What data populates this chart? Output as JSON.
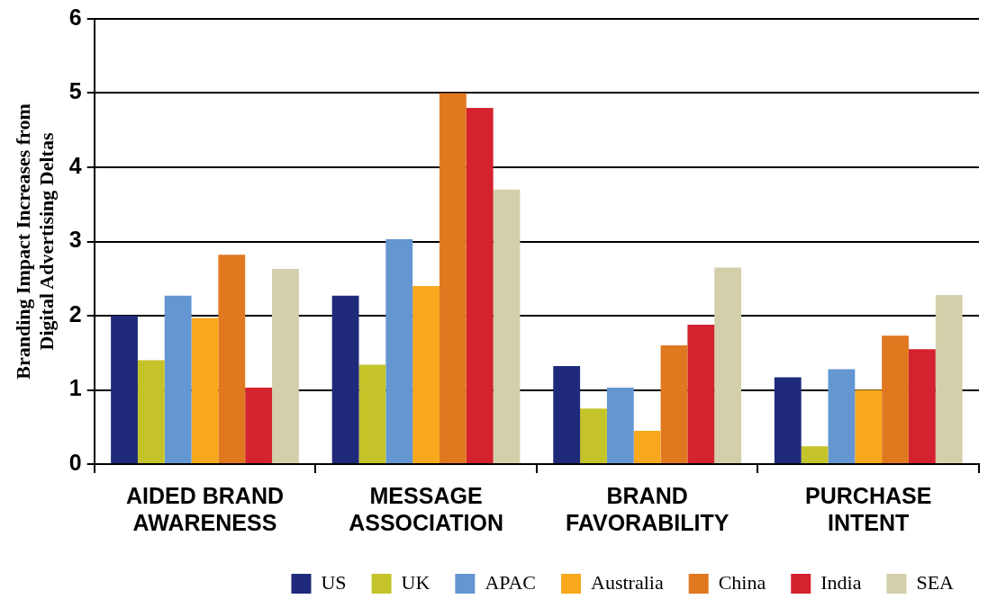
{
  "chart_data": {
    "type": "bar",
    "ylabel": "Branding Impact Increases from\nDigital Advertising Deltas",
    "categories": [
      "AIDED BRAND\nAWARENESS",
      "MESSAGE\nASSOCIATION",
      "BRAND\nFAVORABILITY",
      "PURCHASE\nINTENT"
    ],
    "series": [
      {
        "name": "US",
        "color": "#1f2a7a",
        "values": [
          2.0,
          2.27,
          1.32,
          1.17
        ]
      },
      {
        "name": "UK",
        "color": "#c4c42a",
        "values": [
          1.4,
          1.34,
          0.75,
          0.24
        ]
      },
      {
        "name": "APAC",
        "color": "#6496d2",
        "values": [
          2.27,
          3.03,
          1.03,
          1.28
        ]
      },
      {
        "name": "Australia",
        "color": "#f8a81c",
        "values": [
          1.97,
          2.4,
          0.45,
          1.0
        ]
      },
      {
        "name": "China",
        "color": "#e07820",
        "values": [
          2.82,
          5.0,
          1.6,
          1.73
        ]
      },
      {
        "name": "India",
        "color": "#d4222e",
        "values": [
          1.03,
          4.8,
          1.88,
          1.55
        ]
      },
      {
        "name": "SEA",
        "color": "#d3cfaa",
        "values": [
          2.63,
          3.7,
          2.65,
          2.28
        ]
      }
    ],
    "ylim": [
      0,
      6
    ],
    "yticks": [
      0,
      1,
      2,
      3,
      4,
      5,
      6
    ],
    "grid": "y",
    "legend": "bottom"
  }
}
